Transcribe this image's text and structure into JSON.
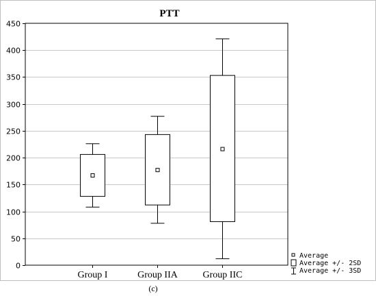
{
  "chart_data": {
    "type": "box",
    "title": "PTT",
    "panel_label": "(c)",
    "categories": [
      "Group I",
      "Group IIA",
      "Group IIC"
    ],
    "ylim": [
      0,
      450
    ],
    "yticks": [
      0,
      50,
      100,
      150,
      200,
      250,
      300,
      350,
      400,
      450
    ],
    "grid": true,
    "boxes": [
      {
        "category": "Group I",
        "mean": 167,
        "box_low": 128,
        "box_high": 206,
        "whisker_low": 108,
        "whisker_high": 226
      },
      {
        "category": "Group IIA",
        "mean": 177,
        "box_low": 112,
        "box_high": 243,
        "whisker_low": 78,
        "whisker_high": 277
      },
      {
        "category": "Group IIC",
        "mean": 216,
        "box_low": 81,
        "box_high": 353,
        "whisker_low": 12,
        "whisker_high": 421
      }
    ],
    "legend": {
      "position": "bottom-right",
      "entries": [
        {
          "symbol": "small-square",
          "label": "Average"
        },
        {
          "symbol": "box",
          "label": "Average +/- 2SD"
        },
        {
          "symbol": "whisker",
          "label": "Average +/- 3SD"
        }
      ]
    }
  }
}
